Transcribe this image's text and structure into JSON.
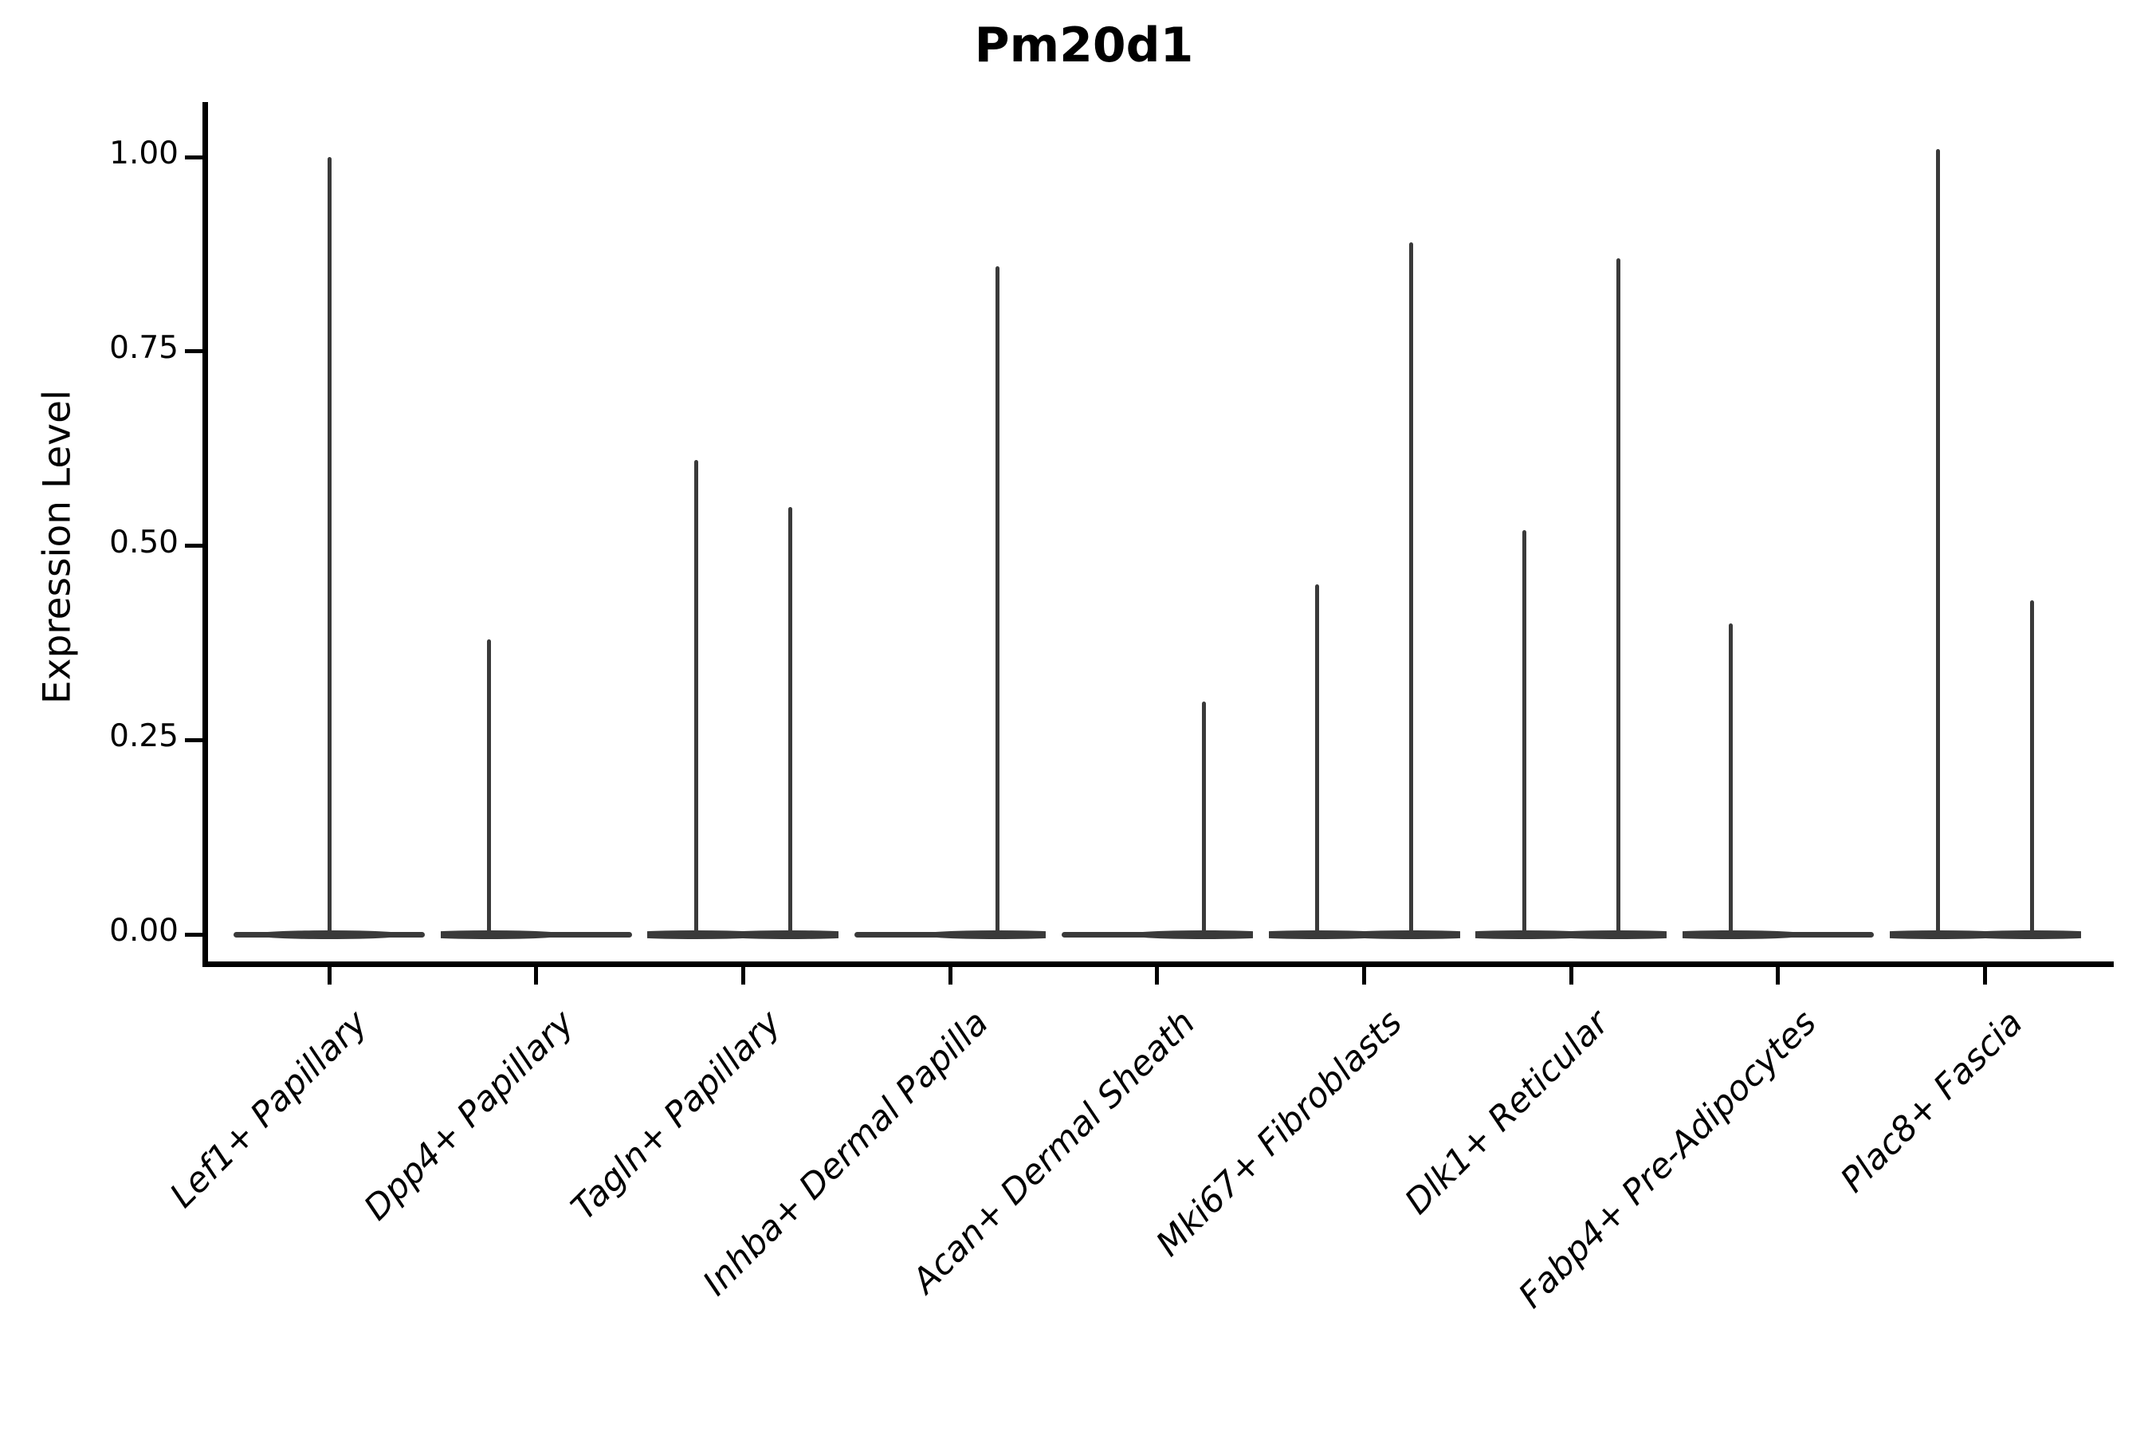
{
  "header": {
    "title": "Pm20d1"
  },
  "chart_data": {
    "type": "violin",
    "title": "Pm20d1",
    "xlabel": "",
    "ylabel": "Expression Level",
    "ylim": [
      0,
      1.05
    ],
    "yticks": [
      {
        "label": "0.00",
        "value": 0.0
      },
      {
        "label": "0.25",
        "value": 0.25
      },
      {
        "label": "0.50",
        "value": 0.5
      },
      {
        "label": "0.75",
        "value": 0.75
      },
      {
        "label": "1.00",
        "value": 1.0
      }
    ],
    "grid": false,
    "legend": "none",
    "description": "Violin plot of expression level per cell type; each distribution is concentrated at 0 with a thin spike up to the group maximum. Up to two violins (groups) per category.",
    "categories": [
      "Lef1+ Papillary",
      "Dpp4+ Papillary",
      "Tagln+ Papillary",
      "Inhba+ Dermal Papilla",
      "Acan+ Dermal Sheath",
      "Mki67+ Fibroblasts",
      "Dlk1+ Reticular",
      "Fabp4+ Pre-Adipocytes",
      "Plac8+ Fascia"
    ],
    "violins": [
      {
        "category": "Lef1+ Papillary",
        "spikes": [
          {
            "position": "center",
            "max": 1.0
          }
        ]
      },
      {
        "category": "Dpp4+ Papillary",
        "spikes": [
          {
            "position": "left",
            "max": 0.38
          }
        ]
      },
      {
        "category": "Tagln+ Papillary",
        "spikes": [
          {
            "position": "left",
            "max": 0.61
          },
          {
            "position": "right",
            "max": 0.55
          }
        ]
      },
      {
        "category": "Inhba+ Dermal Papilla",
        "spikes": [
          {
            "position": "right",
            "max": 0.86
          }
        ]
      },
      {
        "category": "Acan+ Dermal Sheath",
        "spikes": [
          {
            "position": "right",
            "max": 0.3
          }
        ]
      },
      {
        "category": "Mki67+ Fibroblasts",
        "spikes": [
          {
            "position": "left",
            "max": 0.45
          },
          {
            "position": "right",
            "max": 0.89
          }
        ]
      },
      {
        "category": "Dlk1+ Reticular",
        "spikes": [
          {
            "position": "left",
            "max": 0.52
          },
          {
            "position": "right",
            "max": 0.87
          }
        ]
      },
      {
        "category": "Fabp4+ Pre-Adipocytes",
        "spikes": [
          {
            "position": "left",
            "max": 0.4
          }
        ]
      },
      {
        "category": "Plac8+ Fascia",
        "spikes": [
          {
            "position": "left",
            "max": 1.01
          },
          {
            "position": "right",
            "max": 0.43
          }
        ]
      }
    ],
    "colors": {
      "violin": "#3a3a3a",
      "axis": "#000000",
      "text": "#000000"
    }
  }
}
